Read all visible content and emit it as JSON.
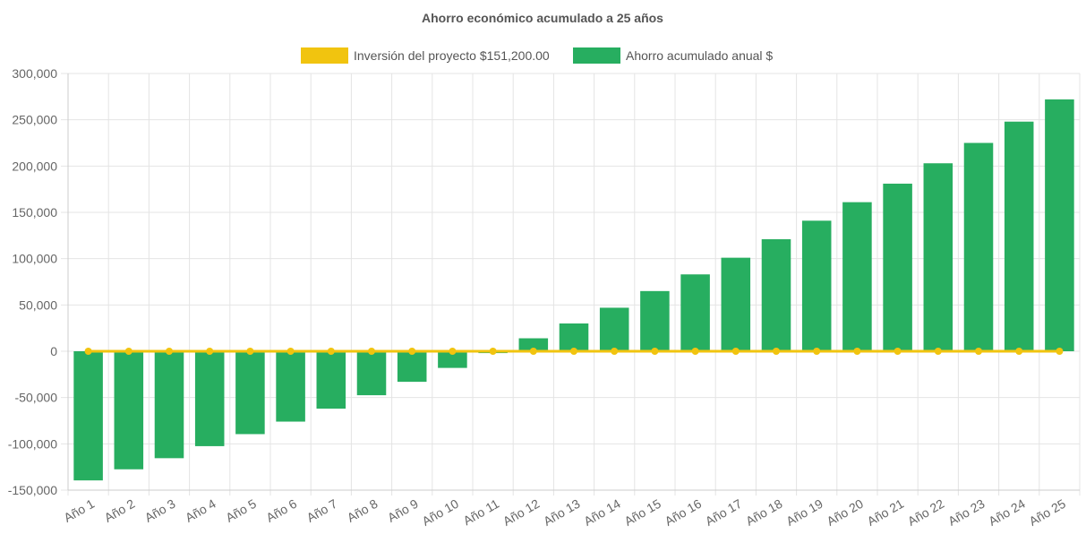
{
  "chart_data": {
    "type": "bar",
    "title": "Ahorro económico acumulado a 25 años",
    "xlabel": "",
    "ylabel": "",
    "ylim": [
      -150000,
      300000
    ],
    "yticks": [
      300000,
      250000,
      200000,
      150000,
      100000,
      50000,
      0,
      -50000,
      -100000,
      -150000
    ],
    "ytick_labels": [
      "300,000",
      "250,000",
      "200,000",
      "150,000",
      "100,000",
      "50,000",
      "0",
      "-50,000",
      "-100,000",
      "-150,000"
    ],
    "grid": true,
    "legend_position": "top-center",
    "categories": [
      "Año 1",
      "Año 2",
      "Año 3",
      "Año 4",
      "Año 5",
      "Año 6",
      "Año 7",
      "Año 8",
      "Año 9",
      "Año 10",
      "Año 11",
      "Año 12",
      "Año 13",
      "Año 14",
      "Año 15",
      "Año 16",
      "Año 17",
      "Año 18",
      "Año 19",
      "Año 20",
      "Año 21",
      "Año 22",
      "Año 23",
      "Año 24",
      "Año 25"
    ],
    "series": [
      {
        "name": "Inversión del proyecto $151,200.00",
        "type": "line",
        "color": "#f1c40f",
        "values": [
          0,
          0,
          0,
          0,
          0,
          0,
          0,
          0,
          0,
          0,
          0,
          0,
          0,
          0,
          0,
          0,
          0,
          0,
          0,
          0,
          0,
          0,
          0,
          0,
          0
        ]
      },
      {
        "name": "Ahorro acumulado anual $",
        "type": "bar",
        "color": "#27ae60",
        "values": [
          -139500,
          -127500,
          -115500,
          -102500,
          -89500,
          -76000,
          -62000,
          -47500,
          -33000,
          -18000,
          -2000,
          14000,
          30000,
          47000,
          65000,
          83000,
          101000,
          121000,
          141000,
          161000,
          181000,
          203000,
          225000,
          248000,
          272000
        ]
      }
    ]
  }
}
